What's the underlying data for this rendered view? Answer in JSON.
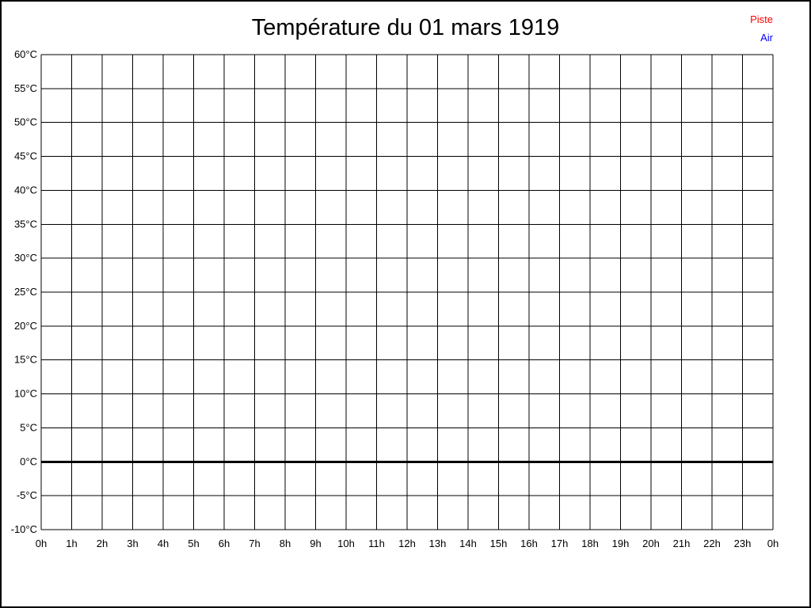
{
  "title": "Température du 01 mars 1919",
  "legend": {
    "items": [
      {
        "label": "Piste",
        "color": "#ff0000"
      },
      {
        "label": "Air",
        "color": "#0000ff"
      }
    ]
  },
  "chart_data": {
    "type": "line",
    "title": "Température du 01 mars 1919",
    "xlabel": "",
    "ylabel": "",
    "x_tick_labels": [
      "0h",
      "1h",
      "2h",
      "3h",
      "4h",
      "5h",
      "6h",
      "7h",
      "8h",
      "9h",
      "10h",
      "11h",
      "12h",
      "13h",
      "14h",
      "15h",
      "16h",
      "17h",
      "18h",
      "19h",
      "20h",
      "21h",
      "22h",
      "23h",
      "0h"
    ],
    "y_ticks": [
      60,
      55,
      50,
      45,
      40,
      35,
      30,
      25,
      20,
      15,
      10,
      5,
      0,
      -5,
      -10
    ],
    "y_tick_labels": [
      "60°C",
      "55°C",
      "50°C",
      "45°C",
      "40°C",
      "35°C",
      "30°C",
      "25°C",
      "20°C",
      "15°C",
      "10°C",
      "5°C",
      "0°C",
      "-5°C",
      "-10°C"
    ],
    "ylim": [
      -10,
      60
    ],
    "grid": true,
    "grid_color": "#000000",
    "zero_line": {
      "value": 0,
      "emphasized": true,
      "color": "#000000"
    },
    "legend_position": "top-right",
    "series": [
      {
        "name": "Piste",
        "color": "#ff0000",
        "values": []
      },
      {
        "name": "Air",
        "color": "#0000ff",
        "values": []
      }
    ]
  }
}
